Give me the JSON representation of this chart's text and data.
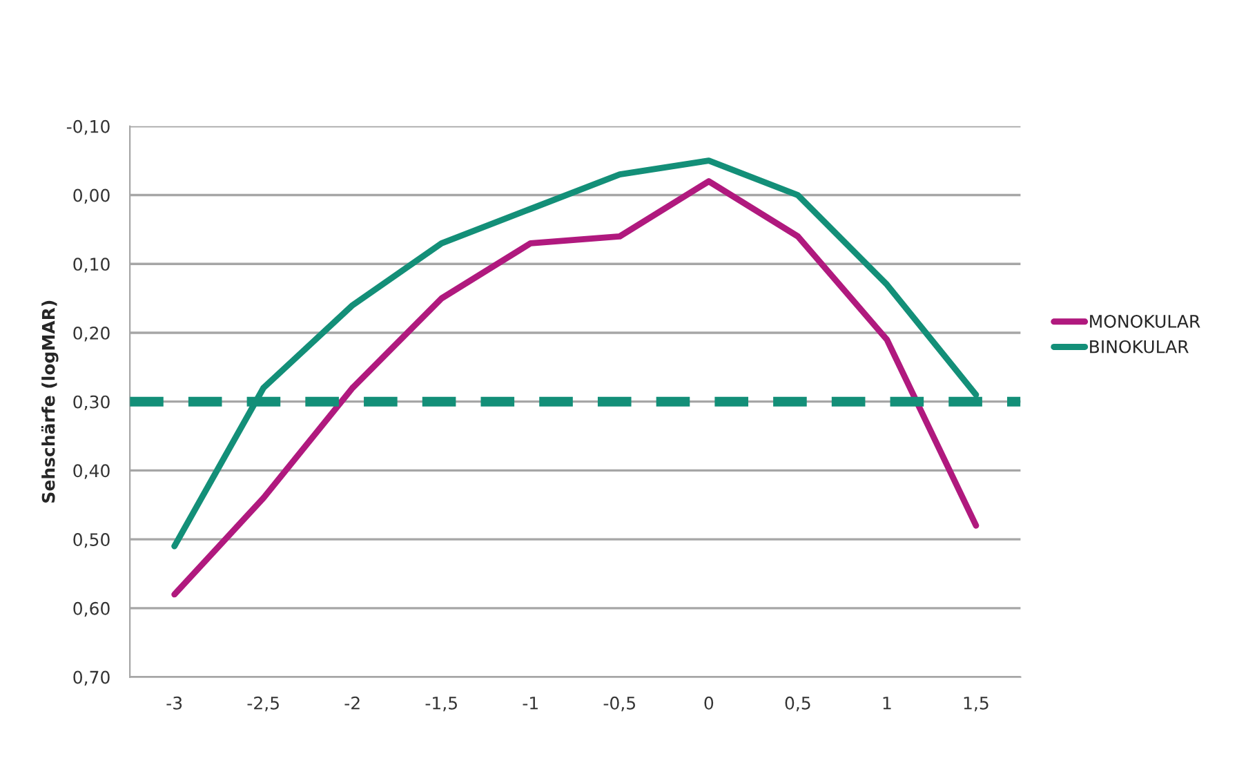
{
  "chart_data": {
    "type": "line",
    "ylabel": "Sehschärfe (logMAR)",
    "categories": [
      "-3",
      "-2,5",
      "-2",
      "-1,5",
      "-1",
      "-0,5",
      "0",
      "0,5",
      "1",
      "1,5"
    ],
    "series": [
      {
        "name": "MONOKULAR",
        "color": "#b0197e",
        "values": [
          0.58,
          0.44,
          0.28,
          0.15,
          0.07,
          0.06,
          -0.02,
          0.06,
          0.21,
          0.48
        ]
      },
      {
        "name": "BINOKULAR",
        "color": "#138f78",
        "values": [
          0.51,
          0.28,
          0.16,
          0.07,
          0.02,
          -0.03,
          -0.05,
          0.0,
          0.13,
          0.29
        ]
      }
    ],
    "ylim": [
      0.7,
      -0.1
    ],
    "yticks": [
      {
        "value": -0.1,
        "label": "-0,10"
      },
      {
        "value": 0.0,
        "label": "0,00"
      },
      {
        "value": 0.1,
        "label": "0,10"
      },
      {
        "value": 0.2,
        "label": "0,20"
      },
      {
        "value": 0.3,
        "label": "0,30"
      },
      {
        "value": 0.4,
        "label": "0,40"
      },
      {
        "value": 0.5,
        "label": "0,50"
      },
      {
        "value": 0.6,
        "label": "0,60"
      },
      {
        "value": 0.7,
        "label": "0,70"
      }
    ],
    "ref_lines": [
      {
        "axis": "y",
        "value": 0.3,
        "color": "#138f78",
        "line_style": "dashed"
      }
    ],
    "grid": "y",
    "legend": "right",
    "marker": "none",
    "line_style": "solid"
  }
}
